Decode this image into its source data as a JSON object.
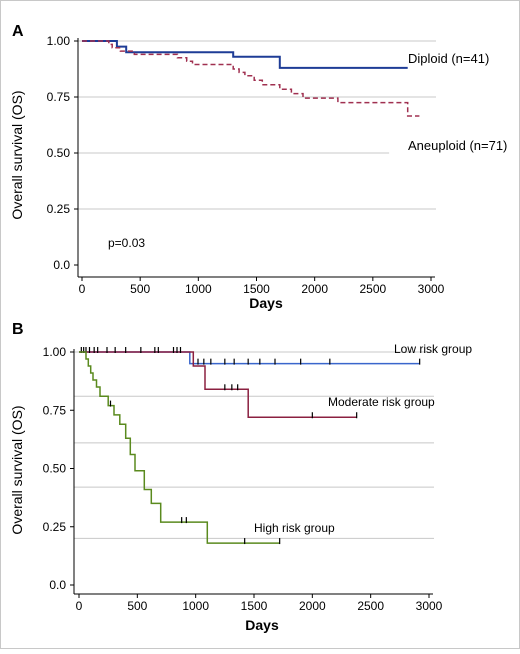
{
  "figure": {
    "border_color": "#c8c8c8"
  },
  "chart_data": [
    {
      "type": "line",
      "panel_label": "A",
      "xlabel": "Days",
      "ylabel": "Overall survival (OS)",
      "xlim": [
        0,
        3000
      ],
      "ylim": [
        0,
        1
      ],
      "x_ticks": [
        "0",
        "500",
        "1000",
        "1500",
        "2000",
        "2500",
        "3000"
      ],
      "y_ticks": [
        "0.0",
        "0.25",
        "0.50",
        "0.75",
        "1.00"
      ],
      "grid": "horizontal",
      "annotation": "p=0.03",
      "series": [
        {
          "name": "Diploid (n=41)",
          "color": "#1e3c96",
          "dash": false,
          "points": [
            [
              0,
              1.0
            ],
            [
              300,
              1.0
            ],
            [
              300,
              0.975
            ],
            [
              380,
              0.975
            ],
            [
              380,
              0.95
            ],
            [
              1300,
              0.95
            ],
            [
              1300,
              0.93
            ],
            [
              1700,
              0.93
            ],
            [
              1700,
              0.88
            ],
            [
              2800,
              0.88
            ]
          ]
        },
        {
          "name": "Aneuploid (n=71)",
          "color": "#a03050",
          "dash": true,
          "points": [
            [
              0,
              1.0
            ],
            [
              230,
              1.0
            ],
            [
              230,
              0.985
            ],
            [
              260,
              0.985
            ],
            [
              260,
              0.97
            ],
            [
              330,
              0.97
            ],
            [
              330,
              0.955
            ],
            [
              450,
              0.955
            ],
            [
              450,
              0.94
            ],
            [
              820,
              0.94
            ],
            [
              820,
              0.925
            ],
            [
              900,
              0.925
            ],
            [
              900,
              0.91
            ],
            [
              950,
              0.91
            ],
            [
              950,
              0.895
            ],
            [
              1300,
              0.895
            ],
            [
              1300,
              0.875
            ],
            [
              1350,
              0.875
            ],
            [
              1350,
              0.86
            ],
            [
              1400,
              0.86
            ],
            [
              1400,
              0.845
            ],
            [
              1480,
              0.845
            ],
            [
              1480,
              0.825
            ],
            [
              1550,
              0.825
            ],
            [
              1550,
              0.805
            ],
            [
              1700,
              0.805
            ],
            [
              1700,
              0.785
            ],
            [
              1800,
              0.785
            ],
            [
              1800,
              0.765
            ],
            [
              1900,
              0.765
            ],
            [
              1900,
              0.745
            ],
            [
              2200,
              0.745
            ],
            [
              2200,
              0.725
            ],
            [
              2800,
              0.725
            ],
            [
              2800,
              0.665
            ],
            [
              2900,
              0.665
            ]
          ]
        }
      ]
    },
    {
      "type": "line",
      "panel_label": "B",
      "xlabel": "Days",
      "ylabel": "Overall survival (OS)",
      "xlim": [
        0,
        3000
      ],
      "ylim": [
        0,
        1
      ],
      "x_ticks": [
        "0",
        "500",
        "1000",
        "1500",
        "2000",
        "2500",
        "3000"
      ],
      "y_ticks": [
        "0.0",
        "0.25",
        "0.50",
        "0.75",
        "1.00"
      ],
      "grid_y": [
        0.2,
        0.42,
        0.61,
        0.81,
        1.0
      ],
      "series": [
        {
          "name": "Low risk group",
          "color": "#3a66cc",
          "points": [
            [
              0,
              1.0
            ],
            [
              950,
              1.0
            ],
            [
              950,
              0.95
            ],
            [
              2920,
              0.95
            ]
          ],
          "censored": [
            [
              1020,
              0.95
            ],
            [
              1070,
              0.95
            ],
            [
              1130,
              0.95
            ],
            [
              1250,
              0.95
            ],
            [
              1330,
              0.95
            ],
            [
              1450,
              0.95
            ],
            [
              1550,
              0.95
            ],
            [
              1680,
              0.95
            ],
            [
              1900,
              0.95
            ],
            [
              2150,
              0.95
            ],
            [
              2920,
              0.95
            ]
          ]
        },
        {
          "name": "Moderate risk group",
          "color": "#8b2040",
          "points": [
            [
              0,
              1.0
            ],
            [
              980,
              1.0
            ],
            [
              980,
              0.94
            ],
            [
              1080,
              0.94
            ],
            [
              1080,
              0.84
            ],
            [
              1450,
              0.84
            ],
            [
              1450,
              0.72
            ],
            [
              2380,
              0.72
            ]
          ],
          "censored": [
            [
              20,
              1.0
            ],
            [
              40,
              1.0
            ],
            [
              60,
              1.0
            ],
            [
              90,
              1.0
            ],
            [
              130,
              1.0
            ],
            [
              160,
              1.0
            ],
            [
              240,
              1.0
            ],
            [
              310,
              1.0
            ],
            [
              400,
              1.0
            ],
            [
              530,
              1.0
            ],
            [
              650,
              1.0
            ],
            [
              680,
              1.0
            ],
            [
              810,
              1.0
            ],
            [
              840,
              1.0
            ],
            [
              870,
              1.0
            ],
            [
              1250,
              0.84
            ],
            [
              1310,
              0.84
            ],
            [
              1360,
              0.84
            ],
            [
              2000,
              0.72
            ],
            [
              2380,
              0.72
            ]
          ]
        },
        {
          "name": "High risk group",
          "color": "#5a8a1e",
          "points": [
            [
              0,
              1.0
            ],
            [
              60,
              1.0
            ],
            [
              60,
              0.97
            ],
            [
              80,
              0.97
            ],
            [
              80,
              0.94
            ],
            [
              100,
              0.94
            ],
            [
              100,
              0.91
            ],
            [
              120,
              0.91
            ],
            [
              120,
              0.88
            ],
            [
              150,
              0.88
            ],
            [
              150,
              0.85
            ],
            [
              180,
              0.85
            ],
            [
              180,
              0.81
            ],
            [
              250,
              0.81
            ],
            [
              250,
              0.77
            ],
            [
              300,
              0.77
            ],
            [
              300,
              0.73
            ],
            [
              350,
              0.73
            ],
            [
              350,
              0.69
            ],
            [
              400,
              0.69
            ],
            [
              400,
              0.63
            ],
            [
              440,
              0.63
            ],
            [
              440,
              0.56
            ],
            [
              480,
              0.56
            ],
            [
              480,
              0.49
            ],
            [
              560,
              0.49
            ],
            [
              560,
              0.41
            ],
            [
              620,
              0.41
            ],
            [
              620,
              0.35
            ],
            [
              700,
              0.35
            ],
            [
              700,
              0.27
            ],
            [
              1100,
              0.27
            ],
            [
              1100,
              0.18
            ],
            [
              1720,
              0.18
            ]
          ],
          "censored": [
            [
              270,
              0.77
            ],
            [
              880,
              0.27
            ],
            [
              920,
              0.27
            ],
            [
              1420,
              0.18
            ],
            [
              1720,
              0.18
            ]
          ]
        }
      ]
    }
  ]
}
